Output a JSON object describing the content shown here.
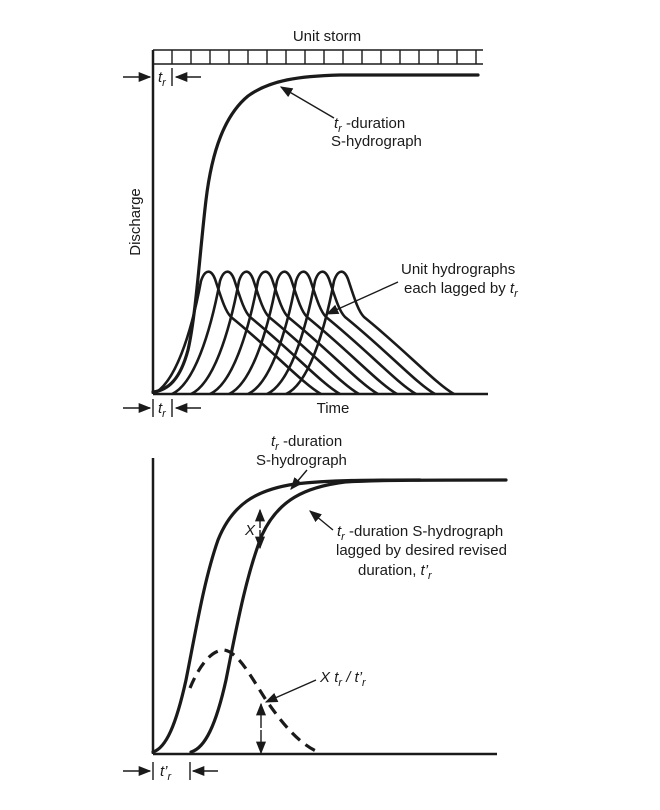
{
  "top": {
    "storm_label": "Unit storm",
    "y_axis_label": "Discharge",
    "x_axis_label": "Time",
    "tr_symbol": "t",
    "tr_sub": "r",
    "s_hydro_label_line1_suffix": " -duration",
    "s_hydro_label_line2": "S-hydrograph",
    "unit_hydro_label_line1": "Unit hydrographs",
    "unit_hydro_label_line2_prefix": "each lagged by "
  },
  "bottom": {
    "s_hydro_label_line1_suffix": " -duration",
    "s_hydro_label_line2": "S-hydrograph",
    "lagged_label_line1_suffix": " -duration S-hydrograph",
    "lagged_label_line2": "lagged by desired revised",
    "lagged_label_line3_prefix": "duration, ",
    "x_marker": "X",
    "ratio_X": "X",
    "ratio_slash": " / ",
    "t_prime": "t’",
    "t_prime_sub": "r"
  }
}
